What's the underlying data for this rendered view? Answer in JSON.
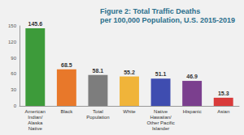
{
  "chart_data": {
    "type": "bar",
    "title": "Figure 2: Total Traffic Deaths\nper 100,000 Population, U.S. 2015-2019",
    "categories": [
      "American\nIndian/\nAlaska\nNative",
      "Black",
      "Total\nPopulation",
      "White",
      "Native\nHawaiian/\nOther Pacific\nIslander",
      "Hispanic",
      "Asian"
    ],
    "values": [
      145.6,
      68.5,
      58.1,
      55.2,
      51.1,
      46.9,
      15.3
    ],
    "colors": [
      "#3d9b3a",
      "#e8782a",
      "#7d7d7d",
      "#f0b43a",
      "#3f4db0",
      "#7b3f8e",
      "#d93b3b"
    ],
    "ylim": [
      0,
      150
    ],
    "yticks": [
      0,
      30,
      60,
      90,
      120,
      150
    ],
    "grid": false,
    "data_labels": true
  }
}
